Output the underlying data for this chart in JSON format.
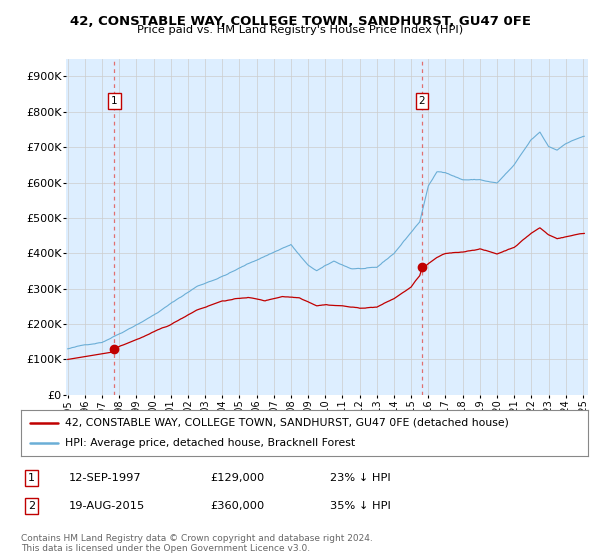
{
  "title": "42, CONSTABLE WAY, COLLEGE TOWN, SANDHURST, GU47 0FE",
  "subtitle": "Price paid vs. HM Land Registry's House Price Index (HPI)",
  "ylabel_ticks": [
    "£0",
    "£100K",
    "£200K",
    "£300K",
    "£400K",
    "£500K",
    "£600K",
    "£700K",
    "£800K",
    "£900K"
  ],
  "ytick_values": [
    0,
    100000,
    200000,
    300000,
    400000,
    500000,
    600000,
    700000,
    800000,
    900000
  ],
  "ylim": [
    0,
    950000
  ],
  "xlim_start": 1994.9,
  "xlim_end": 2025.3,
  "hpi_color": "#6baed6",
  "hpi_fill_color": "#d6e8f5",
  "price_color": "#c00000",
  "vline_color": "#e07070",
  "grid_color": "#cccccc",
  "background_color": "#ffffff",
  "plot_bg_color": "#ddeeff",
  "legend_label_red": "42, CONSTABLE WAY, COLLEGE TOWN, SANDHURST, GU47 0FE (detached house)",
  "legend_label_blue": "HPI: Average price, detached house, Bracknell Forest",
  "annotation1_label": "1",
  "annotation1_date": "12-SEP-1997",
  "annotation1_price": "£129,000",
  "annotation1_hpi": "23% ↓ HPI",
  "annotation2_label": "2",
  "annotation2_date": "19-AUG-2015",
  "annotation2_price": "£360,000",
  "annotation2_hpi": "35% ↓ HPI",
  "footnote": "Contains HM Land Registry data © Crown copyright and database right 2024.\nThis data is licensed under the Open Government Licence v3.0.",
  "sale1_x": 1997.71,
  "sale1_y": 129000,
  "sale2_x": 2015.63,
  "sale2_y": 360000
}
